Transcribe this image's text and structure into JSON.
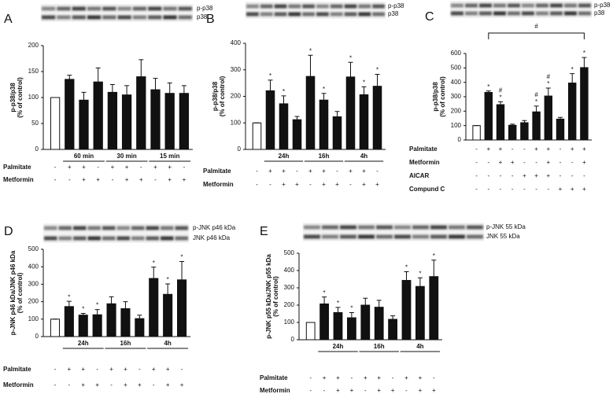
{
  "chart_data": [
    {
      "type": "bar",
      "panel": "A",
      "blot_labels": [
        "p-p38",
        "p38"
      ],
      "ylabel": [
        "p-p38/p38",
        "(% of control)"
      ],
      "values": [
        100,
        135,
        95,
        130,
        110,
        105,
        140,
        115,
        108,
        108
      ],
      "errors": [
        0,
        8,
        15,
        27,
        15,
        18,
        33,
        22,
        20,
        15
      ],
      "colors": [
        "#ffffff",
        "#111111",
        "#111111",
        "#111111",
        "#111111",
        "#111111",
        "#111111",
        "#111111",
        "#111111",
        "#111111"
      ],
      "marks": [
        [],
        [],
        [],
        [],
        [],
        [],
        [],
        [],
        [],
        []
      ],
      "group_labels": [
        "60 min",
        "30 min",
        "15 min"
      ],
      "conditions": [
        {
          "name": "Palmitate",
          "signs": [
            "-",
            "+",
            "+",
            "-",
            "+",
            "+",
            "-",
            "+",
            "+",
            "-"
          ]
        },
        {
          "name": "Metformin",
          "signs": [
            "-",
            "-",
            "+",
            "+",
            "-",
            "+",
            "+",
            "-",
            "+",
            "+"
          ]
        }
      ],
      "ylim": [
        0,
        200
      ],
      "yticks": [
        0,
        50,
        100,
        150,
        200
      ]
    },
    {
      "type": "bar",
      "panel": "B",
      "blot_labels": [
        "p-p38",
        "p38"
      ],
      "ylabel": [
        "p-p38/p38",
        "(% of control)"
      ],
      "values": [
        100,
        221,
        172,
        112,
        275,
        186,
        123,
        273,
        206,
        238
      ],
      "errors": [
        0,
        40,
        30,
        12,
        80,
        25,
        20,
        55,
        30,
        45
      ],
      "colors": [
        "#ffffff",
        "#111111",
        "#111111",
        "#111111",
        "#111111",
        "#111111",
        "#111111",
        "#111111",
        "#111111",
        "#111111"
      ],
      "marks": [
        [],
        [
          "*"
        ],
        [
          "*"
        ],
        [],
        [
          "*"
        ],
        [
          "*"
        ],
        [],
        [
          "*"
        ],
        [
          "*"
        ],
        [
          "*"
        ]
      ],
      "group_labels": [
        "24h",
        "16h",
        "4h"
      ],
      "conditions": [
        {
          "name": "Palmitate",
          "signs": [
            "-",
            "+",
            "+",
            "-",
            "+",
            "+",
            "-",
            "+",
            "+",
            "-"
          ]
        },
        {
          "name": "Metformin",
          "signs": [
            "-",
            "-",
            "+",
            "+",
            "-",
            "+",
            "+",
            "-",
            "+",
            "+"
          ]
        }
      ],
      "ylim": [
        0,
        400
      ],
      "yticks": [
        0,
        100,
        200,
        300,
        400
      ]
    },
    {
      "type": "bar",
      "panel": "C",
      "blot_labels": [
        "p-p38",
        "p38"
      ],
      "ylabel": [
        "p-p38/p38",
        "(% of control)"
      ],
      "values": [
        100,
        330,
        245,
        102,
        120,
        195,
        305,
        145,
        395,
        502
      ],
      "errors": [
        0,
        10,
        20,
        8,
        15,
        40,
        55,
        12,
        65,
        70
      ],
      "colors": [
        "#ffffff",
        "#111111",
        "#111111",
        "#111111",
        "#111111",
        "#111111",
        "#111111",
        "#111111",
        "#111111",
        "#111111"
      ],
      "marks": [
        [],
        [
          "*"
        ],
        [
          "*",
          "#"
        ],
        [],
        [],
        [
          "*",
          "#"
        ],
        [
          "*",
          "#"
        ],
        [],
        [
          "*"
        ],
        [
          "*"
        ]
      ],
      "bracket_label": "#",
      "conditions": [
        {
          "name": "Palmitate",
          "signs": [
            "-",
            "+",
            "+",
            "-",
            "-",
            "+",
            "+",
            "-",
            "+",
            "+"
          ]
        },
        {
          "name": "Metformin",
          "signs": [
            "-",
            "-",
            "+",
            "+",
            "-",
            "-",
            "+",
            "-",
            "-",
            "+"
          ]
        },
        {
          "name": "AICAR",
          "signs": [
            "-",
            "-",
            "-",
            "-",
            "+",
            "+",
            "+",
            "-",
            "-",
            "-"
          ]
        },
        {
          "name": "Compund C",
          "signs": [
            "-",
            "-",
            "-",
            "-",
            "-",
            "-",
            "-",
            "+",
            "+",
            "+"
          ]
        }
      ],
      "ylim": [
        0,
        600
      ],
      "yticks": [
        0,
        100,
        200,
        300,
        400,
        500,
        600
      ]
    },
    {
      "type": "bar",
      "panel": "D",
      "blot_labels": [
        "p-JNK p46 kDa",
        "JNK p46 kDa"
      ],
      "ylabel": [
        "p-JNK p46 kDa/JNK p46 kDa",
        "(% of control)"
      ],
      "values": [
        100,
        172,
        123,
        125,
        188,
        160,
        103,
        333,
        242,
        325
      ],
      "errors": [
        0,
        30,
        10,
        30,
        40,
        40,
        20,
        65,
        60,
        105
      ],
      "colors": [
        "#ffffff",
        "#111111",
        "#111111",
        "#111111",
        "#111111",
        "#111111",
        "#111111",
        "#111111",
        "#111111",
        "#111111"
      ],
      "marks": [
        [],
        [
          "*"
        ],
        [
          "*"
        ],
        [
          "*"
        ],
        [],
        [],
        [],
        [
          "*"
        ],
        [
          "*"
        ],
        [
          "*"
        ]
      ],
      "group_labels": [
        "24h",
        "16h",
        "4h"
      ],
      "conditions": [
        {
          "name": "Palmitate",
          "signs": [
            "-",
            "+",
            "+",
            "-",
            "+",
            "+",
            "-",
            "+",
            "+",
            "-"
          ]
        },
        {
          "name": "Metformin",
          "signs": [
            "-",
            "-",
            "+",
            "+",
            "-",
            "+",
            "+",
            "-",
            "+",
            "+"
          ]
        }
      ],
      "ylim": [
        0,
        500
      ],
      "yticks": [
        0,
        100,
        200,
        300,
        400,
        500
      ]
    },
    {
      "type": "bar",
      "panel": "E",
      "blot_labels": [
        "p-JNK 55 kDa",
        "JNK 55 kDa"
      ],
      "ylabel": [
        "p-JNK p55 kDa/JNK p55 kDa",
        "(% of control)"
      ],
      "values": [
        100,
        207,
        157,
        127,
        200,
        188,
        118,
        343,
        308,
        365
      ],
      "errors": [
        0,
        40,
        30,
        30,
        40,
        40,
        20,
        50,
        50,
        95
      ],
      "colors": [
        "#ffffff",
        "#111111",
        "#111111",
        "#111111",
        "#111111",
        "#111111",
        "#111111",
        "#111111",
        "#111111",
        "#111111"
      ],
      "marks": [
        [],
        [
          "*"
        ],
        [
          "*"
        ],
        [
          "*"
        ],
        [],
        [],
        [],
        [
          "*"
        ],
        [
          "*"
        ],
        [
          "*"
        ]
      ],
      "group_labels": [
        "24h",
        "16h",
        "4h"
      ],
      "conditions": [
        {
          "name": "Palmitate",
          "signs": [
            "-",
            "+",
            "+",
            "-",
            "+",
            "+",
            "-",
            "+",
            "+",
            "-"
          ]
        },
        {
          "name": "Metformin",
          "signs": [
            "-",
            "-",
            "+",
            "+",
            "-",
            "+",
            "+",
            "-",
            "+",
            "+"
          ]
        }
      ],
      "ylim": [
        0,
        500
      ],
      "yticks": [
        0,
        100,
        200,
        300,
        400,
        500
      ]
    }
  ]
}
